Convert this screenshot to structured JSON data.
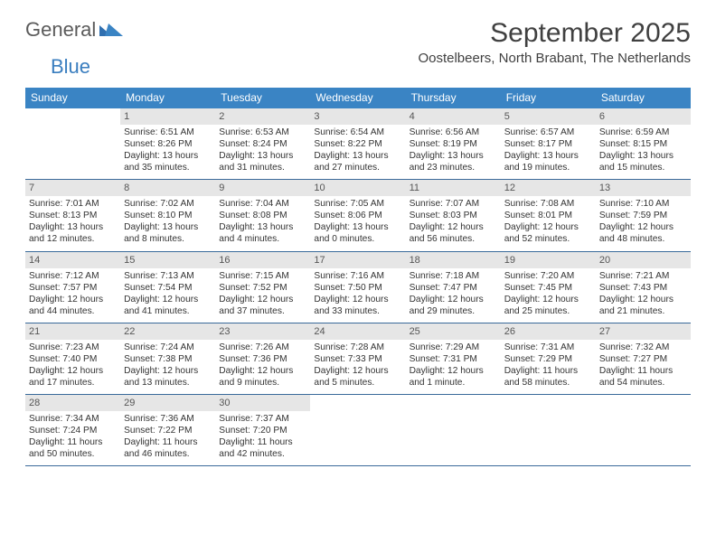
{
  "logo": {
    "text1": "General",
    "text2": "Blue"
  },
  "title": "September 2025",
  "subtitle": "Oostelbeers, North Brabant, The Netherlands",
  "dow_header_bg": "#3a84c4",
  "dow_text_color": "#ffffff",
  "daynum_bg": "#e6e6e6",
  "row_border_color": "#3a6a9a",
  "days_of_week": [
    "Sunday",
    "Monday",
    "Tuesday",
    "Wednesday",
    "Thursday",
    "Friday",
    "Saturday"
  ],
  "weeks": [
    [
      {
        "n": "",
        "sunrise": "",
        "sunset": "",
        "daylight": ""
      },
      {
        "n": "1",
        "sunrise": "Sunrise: 6:51 AM",
        "sunset": "Sunset: 8:26 PM",
        "daylight": "Daylight: 13 hours and 35 minutes."
      },
      {
        "n": "2",
        "sunrise": "Sunrise: 6:53 AM",
        "sunset": "Sunset: 8:24 PM",
        "daylight": "Daylight: 13 hours and 31 minutes."
      },
      {
        "n": "3",
        "sunrise": "Sunrise: 6:54 AM",
        "sunset": "Sunset: 8:22 PM",
        "daylight": "Daylight: 13 hours and 27 minutes."
      },
      {
        "n": "4",
        "sunrise": "Sunrise: 6:56 AM",
        "sunset": "Sunset: 8:19 PM",
        "daylight": "Daylight: 13 hours and 23 minutes."
      },
      {
        "n": "5",
        "sunrise": "Sunrise: 6:57 AM",
        "sunset": "Sunset: 8:17 PM",
        "daylight": "Daylight: 13 hours and 19 minutes."
      },
      {
        "n": "6",
        "sunrise": "Sunrise: 6:59 AM",
        "sunset": "Sunset: 8:15 PM",
        "daylight": "Daylight: 13 hours and 15 minutes."
      }
    ],
    [
      {
        "n": "7",
        "sunrise": "Sunrise: 7:01 AM",
        "sunset": "Sunset: 8:13 PM",
        "daylight": "Daylight: 13 hours and 12 minutes."
      },
      {
        "n": "8",
        "sunrise": "Sunrise: 7:02 AM",
        "sunset": "Sunset: 8:10 PM",
        "daylight": "Daylight: 13 hours and 8 minutes."
      },
      {
        "n": "9",
        "sunrise": "Sunrise: 7:04 AM",
        "sunset": "Sunset: 8:08 PM",
        "daylight": "Daylight: 13 hours and 4 minutes."
      },
      {
        "n": "10",
        "sunrise": "Sunrise: 7:05 AM",
        "sunset": "Sunset: 8:06 PM",
        "daylight": "Daylight: 13 hours and 0 minutes."
      },
      {
        "n": "11",
        "sunrise": "Sunrise: 7:07 AM",
        "sunset": "Sunset: 8:03 PM",
        "daylight": "Daylight: 12 hours and 56 minutes."
      },
      {
        "n": "12",
        "sunrise": "Sunrise: 7:08 AM",
        "sunset": "Sunset: 8:01 PM",
        "daylight": "Daylight: 12 hours and 52 minutes."
      },
      {
        "n": "13",
        "sunrise": "Sunrise: 7:10 AM",
        "sunset": "Sunset: 7:59 PM",
        "daylight": "Daylight: 12 hours and 48 minutes."
      }
    ],
    [
      {
        "n": "14",
        "sunrise": "Sunrise: 7:12 AM",
        "sunset": "Sunset: 7:57 PM",
        "daylight": "Daylight: 12 hours and 44 minutes."
      },
      {
        "n": "15",
        "sunrise": "Sunrise: 7:13 AM",
        "sunset": "Sunset: 7:54 PM",
        "daylight": "Daylight: 12 hours and 41 minutes."
      },
      {
        "n": "16",
        "sunrise": "Sunrise: 7:15 AM",
        "sunset": "Sunset: 7:52 PM",
        "daylight": "Daylight: 12 hours and 37 minutes."
      },
      {
        "n": "17",
        "sunrise": "Sunrise: 7:16 AM",
        "sunset": "Sunset: 7:50 PM",
        "daylight": "Daylight: 12 hours and 33 minutes."
      },
      {
        "n": "18",
        "sunrise": "Sunrise: 7:18 AM",
        "sunset": "Sunset: 7:47 PM",
        "daylight": "Daylight: 12 hours and 29 minutes."
      },
      {
        "n": "19",
        "sunrise": "Sunrise: 7:20 AM",
        "sunset": "Sunset: 7:45 PM",
        "daylight": "Daylight: 12 hours and 25 minutes."
      },
      {
        "n": "20",
        "sunrise": "Sunrise: 7:21 AM",
        "sunset": "Sunset: 7:43 PM",
        "daylight": "Daylight: 12 hours and 21 minutes."
      }
    ],
    [
      {
        "n": "21",
        "sunrise": "Sunrise: 7:23 AM",
        "sunset": "Sunset: 7:40 PM",
        "daylight": "Daylight: 12 hours and 17 minutes."
      },
      {
        "n": "22",
        "sunrise": "Sunrise: 7:24 AM",
        "sunset": "Sunset: 7:38 PM",
        "daylight": "Daylight: 12 hours and 13 minutes."
      },
      {
        "n": "23",
        "sunrise": "Sunrise: 7:26 AM",
        "sunset": "Sunset: 7:36 PM",
        "daylight": "Daylight: 12 hours and 9 minutes."
      },
      {
        "n": "24",
        "sunrise": "Sunrise: 7:28 AM",
        "sunset": "Sunset: 7:33 PM",
        "daylight": "Daylight: 12 hours and 5 minutes."
      },
      {
        "n": "25",
        "sunrise": "Sunrise: 7:29 AM",
        "sunset": "Sunset: 7:31 PM",
        "daylight": "Daylight: 12 hours and 1 minute."
      },
      {
        "n": "26",
        "sunrise": "Sunrise: 7:31 AM",
        "sunset": "Sunset: 7:29 PM",
        "daylight": "Daylight: 11 hours and 58 minutes."
      },
      {
        "n": "27",
        "sunrise": "Sunrise: 7:32 AM",
        "sunset": "Sunset: 7:27 PM",
        "daylight": "Daylight: 11 hours and 54 minutes."
      }
    ],
    [
      {
        "n": "28",
        "sunrise": "Sunrise: 7:34 AM",
        "sunset": "Sunset: 7:24 PM",
        "daylight": "Daylight: 11 hours and 50 minutes."
      },
      {
        "n": "29",
        "sunrise": "Sunrise: 7:36 AM",
        "sunset": "Sunset: 7:22 PM",
        "daylight": "Daylight: 11 hours and 46 minutes."
      },
      {
        "n": "30",
        "sunrise": "Sunrise: 7:37 AM",
        "sunset": "Sunset: 7:20 PM",
        "daylight": "Daylight: 11 hours and 42 minutes."
      },
      {
        "n": "",
        "sunrise": "",
        "sunset": "",
        "daylight": ""
      },
      {
        "n": "",
        "sunrise": "",
        "sunset": "",
        "daylight": ""
      },
      {
        "n": "",
        "sunrise": "",
        "sunset": "",
        "daylight": ""
      },
      {
        "n": "",
        "sunrise": "",
        "sunset": "",
        "daylight": ""
      }
    ]
  ]
}
